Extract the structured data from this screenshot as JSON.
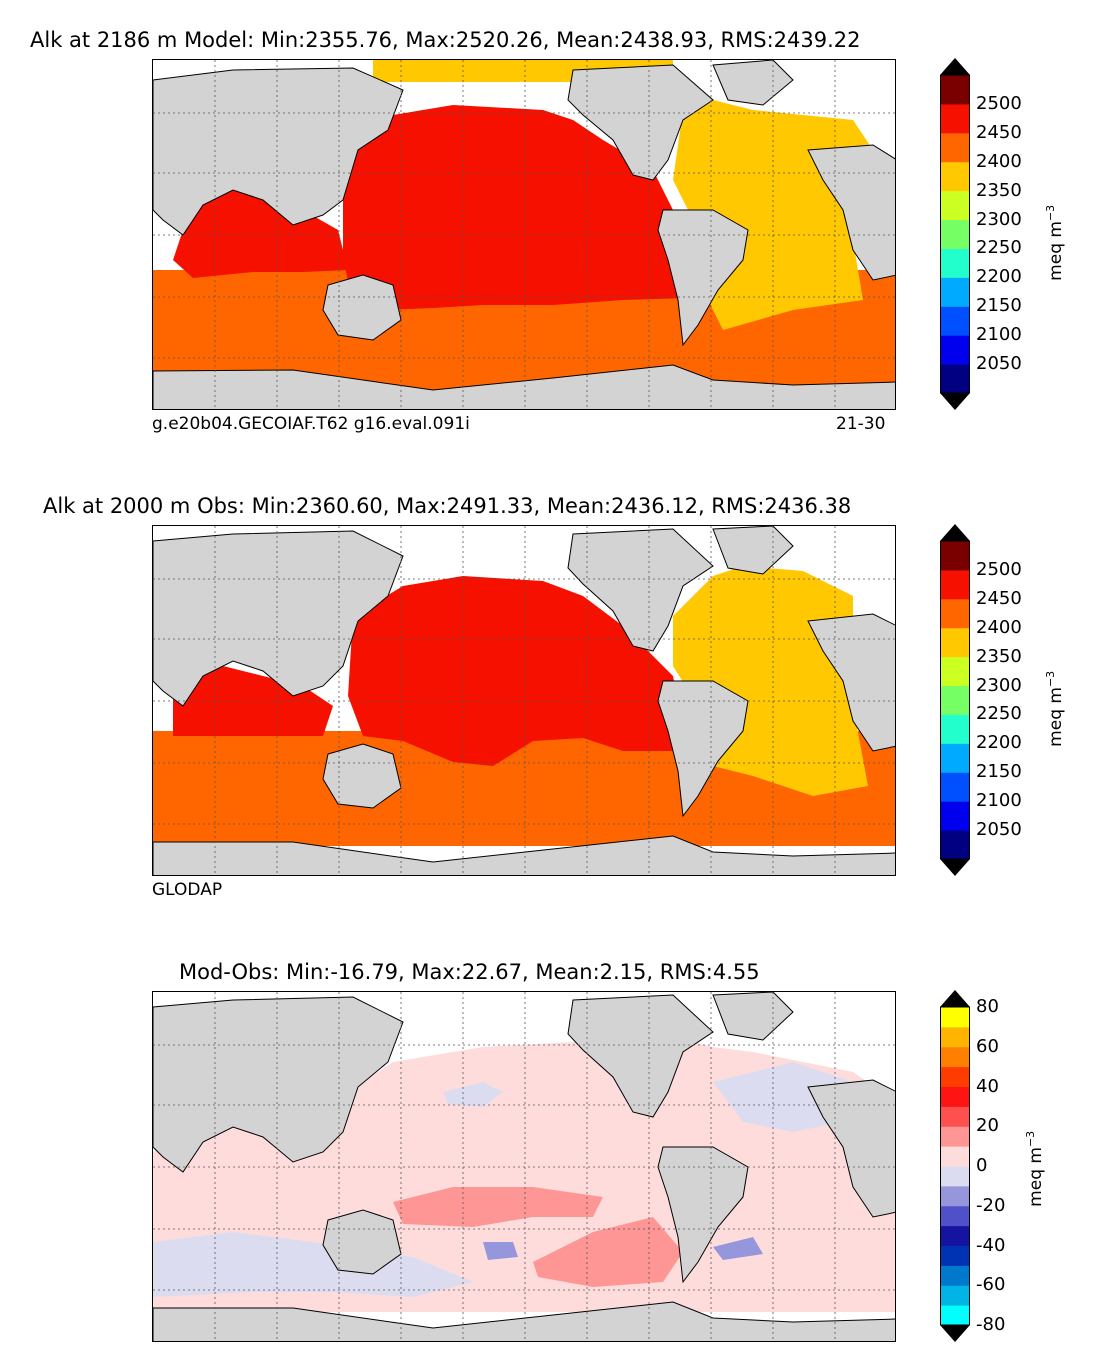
{
  "chart_data": [
    {
      "type": "heatmap",
      "title": "Alk at 2186 m Model: Min:2355.76, Max:2520.26, Mean:2438.93, RMS:2439.22",
      "footer_left": "g.e20b04.GECOIAF.T62 g16.eval.091i",
      "footer_right": "21-30",
      "colorbar": {
        "label": "meq m",
        "label_sup": "−3",
        "ticks": [
          "2500",
          "2450",
          "2400",
          "2350",
          "2300",
          "2250",
          "2200",
          "2150",
          "2100",
          "2050"
        ],
        "colors": [
          "#000080",
          "#0000ee",
          "#0050ff",
          "#00aaff",
          "#22ffcc",
          "#77ff66",
          "#ccff22",
          "#ffc800",
          "#ff6600",
          "#f51000",
          "#7a0000"
        ],
        "extend": "both"
      },
      "regions": {
        "pacific": "2450-2500",
        "indian_north": "2450-2500",
        "atlantic": "2350-2400",
        "southern_ocean": "2400-2450"
      },
      "colors": {
        "pacific": "#f51000",
        "atlantic": "#ffc800",
        "southern": "#ff6600",
        "land": "#d3d3d3"
      }
    },
    {
      "type": "heatmap",
      "title": "Alk at 2000 m Obs: Min:2360.60, Max:2491.33, Mean:2436.12, RMS:2436.38",
      "footer_left": "GLODAP",
      "colorbar": {
        "label": "meq m",
        "label_sup": "−3",
        "ticks": [
          "2500",
          "2450",
          "2400",
          "2350",
          "2300",
          "2250",
          "2200",
          "2150",
          "2100",
          "2050"
        ],
        "colors": [
          "#000080",
          "#0000ee",
          "#0050ff",
          "#00aaff",
          "#22ffcc",
          "#77ff66",
          "#ccff22",
          "#ffc800",
          "#ff6600",
          "#f51000",
          "#7a0000"
        ],
        "extend": "both"
      },
      "regions": {
        "pacific": "2450-2500",
        "indian_north": "2450-2500",
        "atlantic": "2350-2400",
        "southern_ocean": "2400-2450"
      },
      "colors": {
        "pacific": "#f51000",
        "atlantic": "#ffc800",
        "southern": "#ff6600",
        "land": "#d3d3d3"
      }
    },
    {
      "type": "heatmap",
      "title": "Mod-Obs: Min:-16.79, Max:22.67, Mean:2.15, RMS:4.55",
      "colorbar": {
        "label": "meq m",
        "label_sup": "−3",
        "ticks": [
          "80",
          "60",
          "40",
          "20",
          "0",
          "-20",
          "-40",
          "-60",
          "-80"
        ],
        "colors": [
          "#00ffff",
          "#00b4e6",
          "#0078cc",
          "#0032b4",
          "#1414a0",
          "#5050c8",
          "#9696dc",
          "#dcdcf0",
          "#ffdcdc",
          "#ff9696",
          "#ff5050",
          "#ff1414",
          "#ff3c00",
          "#ff8000",
          "#ffb400",
          "#ffff00"
        ],
        "extend": "both"
      },
      "regions": {
        "background": "0 to 10",
        "western_pacific_band": "10 to 20",
        "south_pacific_patch": "10 to 20",
        "southern_indian_band": "-10 to 0"
      },
      "colors": {
        "pos_low": "#ffdcdc",
        "pos_mid": "#ff9696",
        "neg_low": "#dcdcf0",
        "neg_mid": "#9696dc",
        "land": "#d3d3d3"
      }
    }
  ]
}
